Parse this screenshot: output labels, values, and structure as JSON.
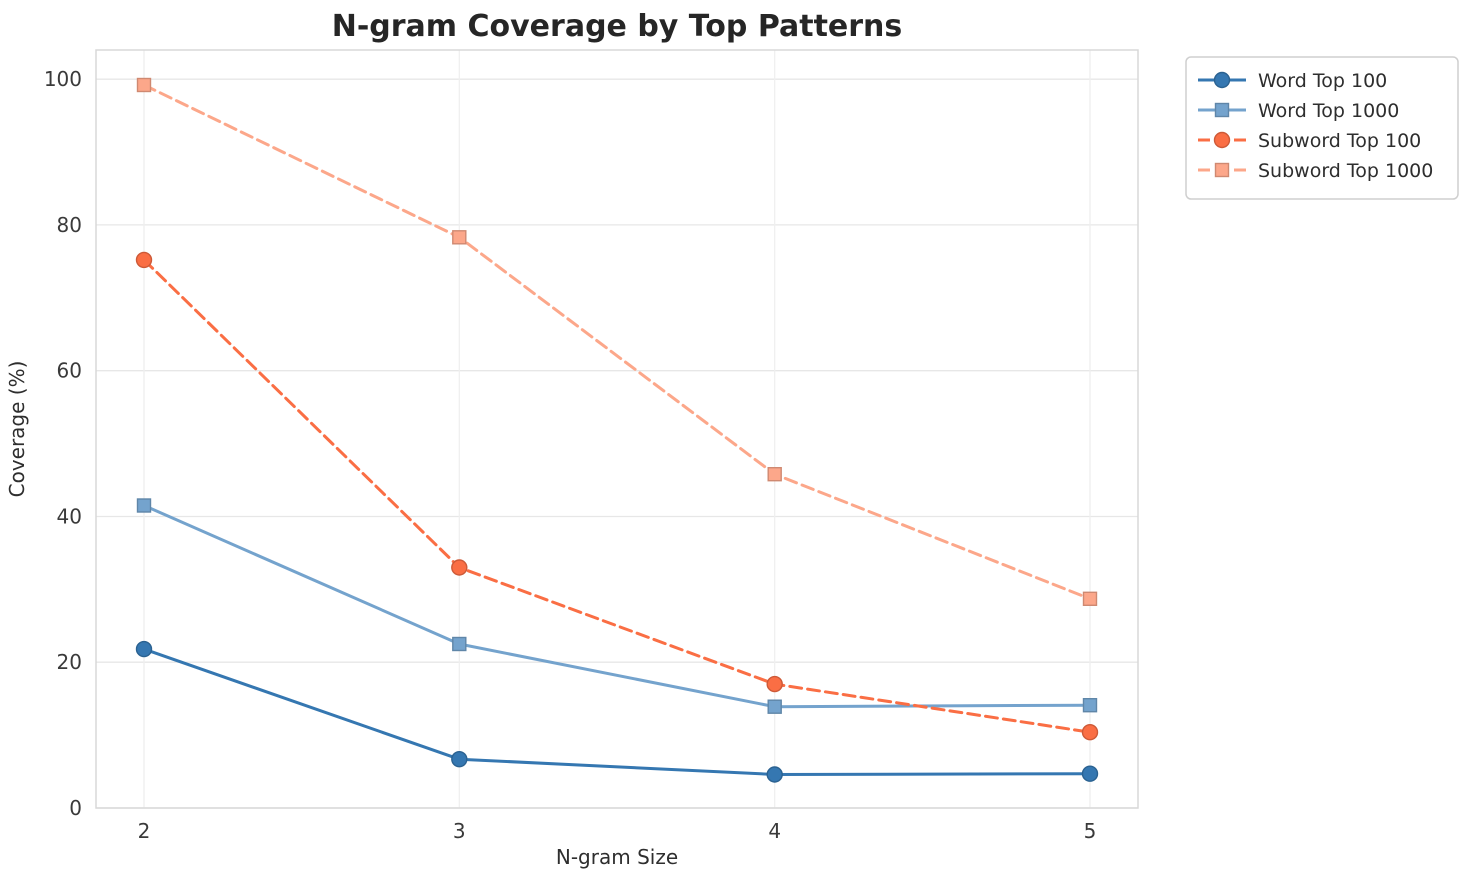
{
  "chart_data": {
    "type": "line",
    "title": "N-gram Coverage by Top Patterns",
    "xlabel": "N-gram Size",
    "ylabel": "Coverage (%)",
    "x": [
      2,
      3,
      4,
      5
    ],
    "xticks": [
      "2",
      "3",
      "4",
      "5"
    ],
    "yticks": [
      0,
      20,
      40,
      60,
      80,
      100
    ],
    "ylim": [
      0,
      104
    ],
    "grid": true,
    "legend_position": "outside-top-right",
    "series": [
      {
        "name": "Word Top 100",
        "color": "#3577b1",
        "linestyle": "solid",
        "marker": "circle",
        "values": [
          21.8,
          6.7,
          4.6,
          4.7
        ]
      },
      {
        "name": "Word Top 1000",
        "color": "#74a3cd",
        "linestyle": "solid",
        "marker": "square",
        "values": [
          41.5,
          22.5,
          13.9,
          14.1
        ]
      },
      {
        "name": "Subword Top 100",
        "color": "#fa6e44",
        "linestyle": "dashed",
        "marker": "circle",
        "values": [
          75.2,
          33.0,
          17.0,
          10.4
        ]
      },
      {
        "name": "Subword Top 1000",
        "color": "#fca78a",
        "linestyle": "dashed",
        "marker": "square",
        "values": [
          99.2,
          78.3,
          45.8,
          28.7
        ]
      }
    ],
    "colors": {
      "grid": "#e7e7e7",
      "plot_border": "#d8d8d8",
      "title_text": "#262626",
      "tick_text": "#3a3a3a",
      "axis_label_text": "#2e2e2e",
      "legend_border": "#cfcfcf",
      "background": "#ffffff"
    }
  }
}
